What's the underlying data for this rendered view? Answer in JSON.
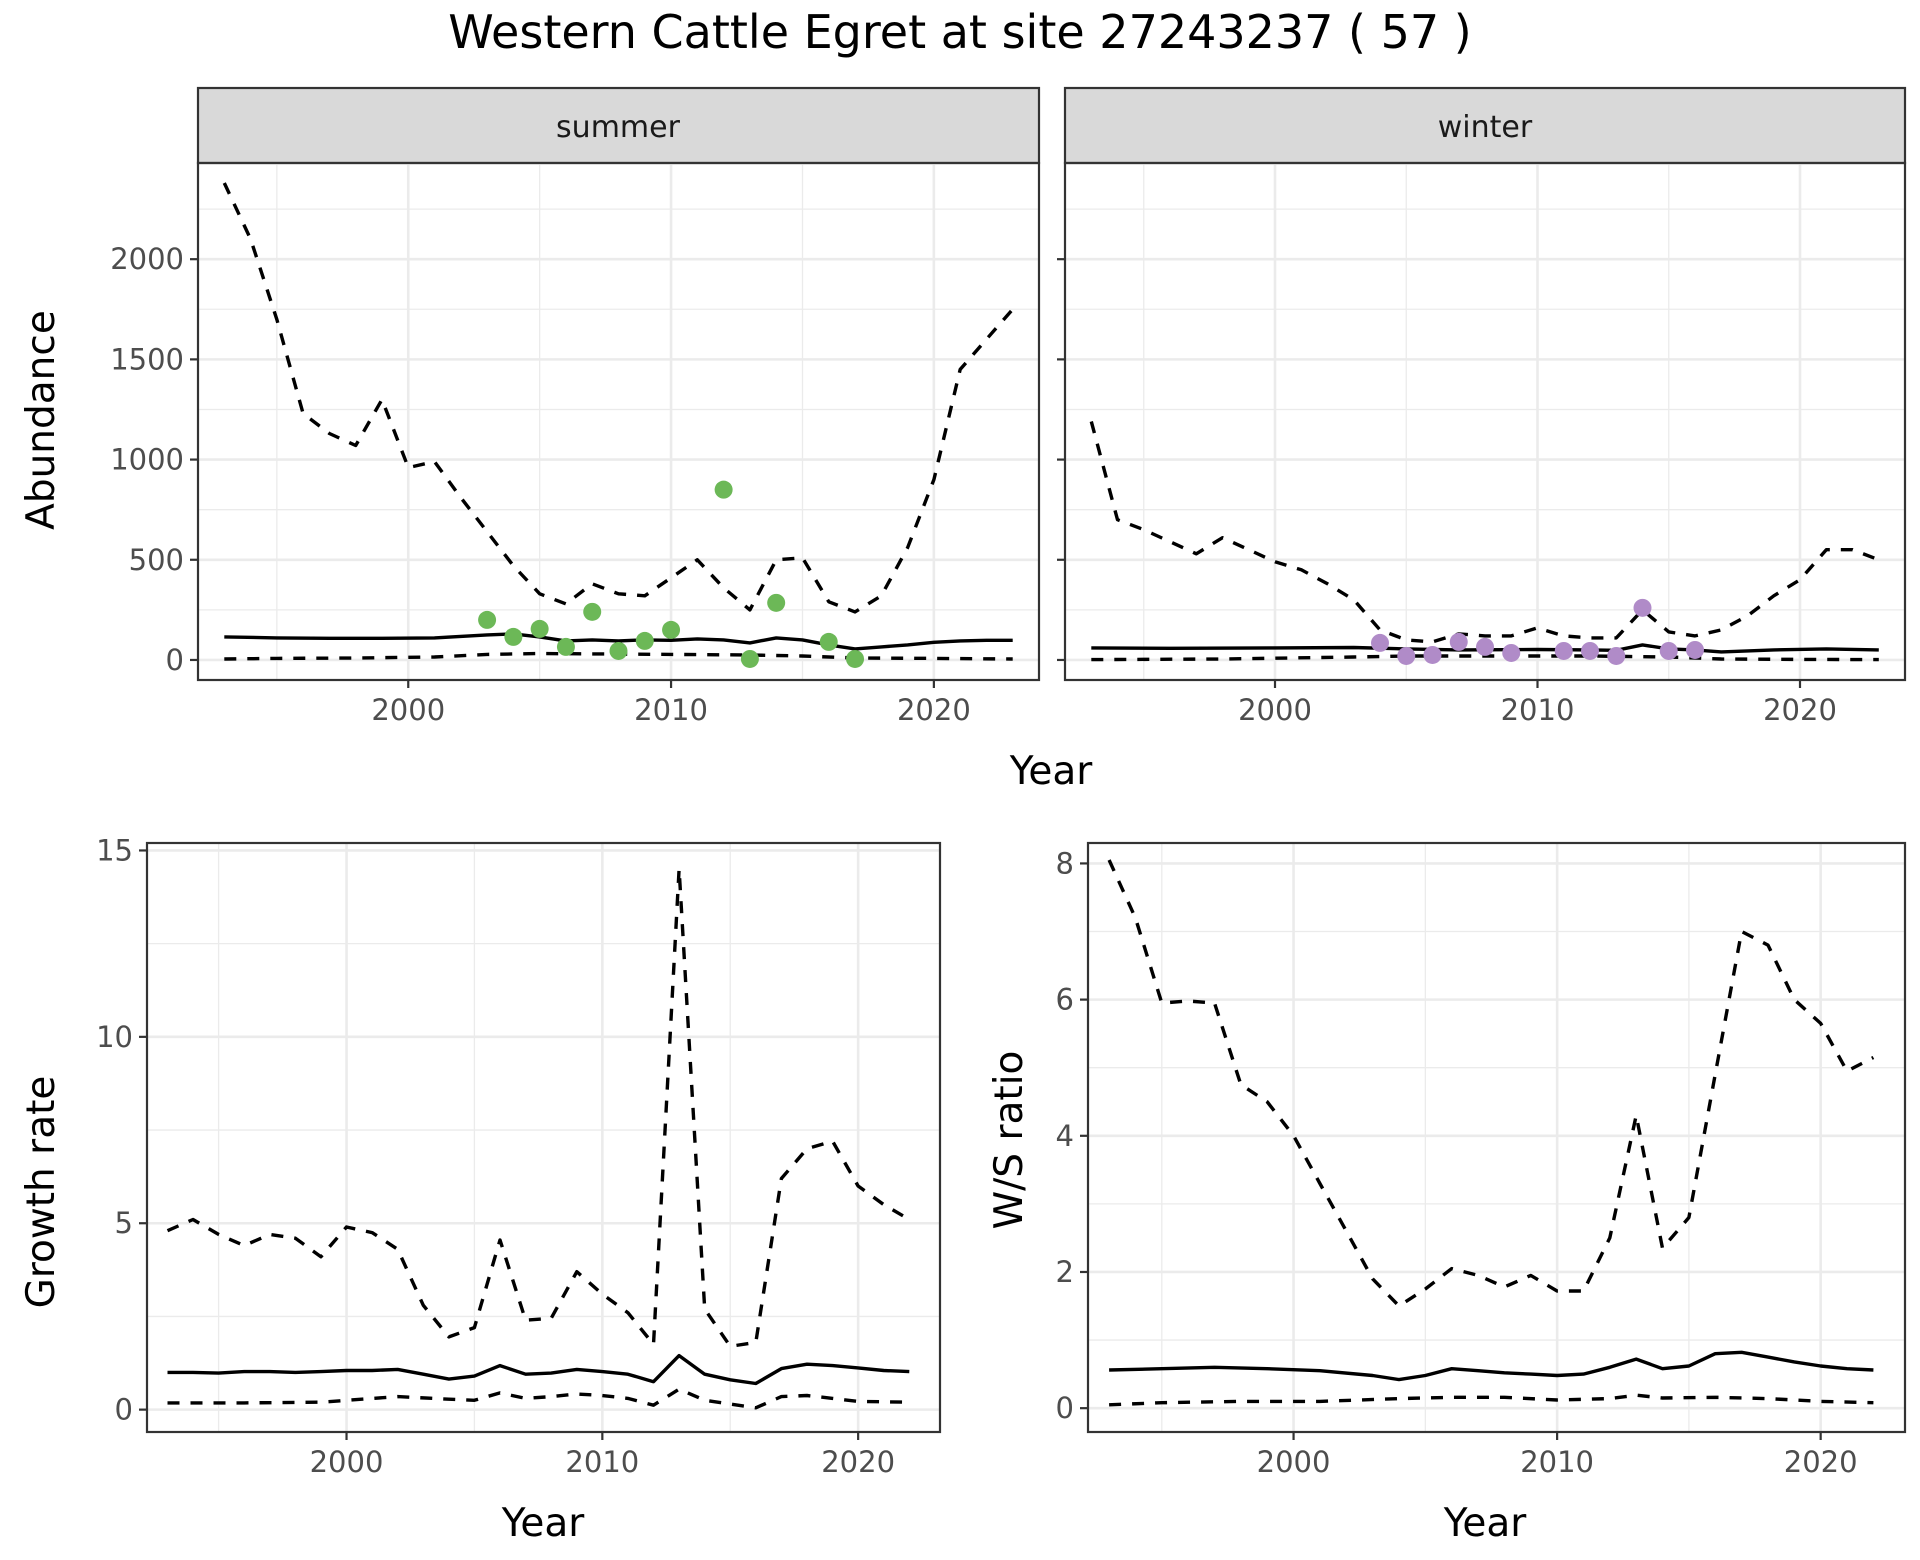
{
  "title": "Western Cattle Egret at site 27243237 ( 57 )",
  "colors": {
    "summer_points": "#6cb857",
    "winter_points": "#b08bc8",
    "lines": "#000000",
    "strip": "#d9d9d9"
  },
  "chart_data": [
    {
      "type": "line",
      "id": "abundance-summer",
      "facet": "summer",
      "xlabel": "Year",
      "ylabel": "Abundance",
      "xlim": [
        1992,
        2024
      ],
      "ylim": [
        -100,
        2480
      ],
      "xticks": [
        2000,
        2010,
        2020
      ],
      "yticks": [
        0,
        500,
        1000,
        1500,
        2000
      ],
      "grid": true,
      "series": [
        {
          "style": "solid",
          "x": [
            1993,
            1995,
            1997,
            1999,
            2001,
            2003,
            2004,
            2005,
            2006,
            2007,
            2008,
            2009,
            2010,
            2011,
            2012,
            2013,
            2014,
            2015,
            2016,
            2017,
            2018,
            2019,
            2020,
            2021,
            2022,
            2023
          ],
          "y": [
            115,
            110,
            108,
            108,
            110,
            125,
            130,
            115,
            95,
            100,
            95,
            100,
            98,
            105,
            100,
            85,
            110,
            100,
            75,
            55,
            65,
            75,
            88,
            95,
            98,
            98
          ]
        },
        {
          "style": "dashed",
          "x": [
            1993,
            1994,
            1995,
            1996,
            1997,
            1998,
            1999,
            2000,
            2001,
            2002,
            2003,
            2004,
            2005,
            2006,
            2007,
            2008,
            2009,
            2010,
            2011,
            2012,
            2013,
            2014,
            2015,
            2016,
            2017,
            2018,
            2019,
            2020,
            2021,
            2022,
            2023
          ],
          "y": [
            2380,
            2100,
            1700,
            1230,
            1130,
            1070,
            1300,
            960,
            990,
            810,
            640,
            470,
            330,
            280,
            380,
            330,
            320,
            410,
            500,
            360,
            250,
            500,
            510,
            290,
            240,
            320,
            560,
            900,
            1450,
            1600,
            1750
          ]
        },
        {
          "style": "dashed",
          "x": [
            1993,
            1995,
            1998,
            2001,
            2003,
            2005,
            2007,
            2010,
            2013,
            2015,
            2017,
            2020,
            2023
          ],
          "y": [
            5,
            8,
            10,
            15,
            28,
            32,
            30,
            28,
            25,
            20,
            10,
            8,
            5
          ]
        }
      ],
      "points": {
        "x": [
          2003,
          2004,
          2005,
          2006,
          2007,
          2008,
          2009,
          2010,
          2012,
          2013,
          2014,
          2016,
          2017
        ],
        "y": [
          200,
          115,
          155,
          65,
          240,
          45,
          95,
          150,
          850,
          5,
          285,
          90,
          5
        ]
      }
    },
    {
      "type": "line",
      "id": "abundance-winter",
      "facet": "winter",
      "xlabel": "Year",
      "ylabel": "Abundance",
      "xlim": [
        1992,
        2024
      ],
      "ylim": [
        -100,
        2480
      ],
      "xticks": [
        2000,
        2010,
        2020
      ],
      "yticks": [
        0,
        500,
        1000,
        1500,
        2000
      ],
      "grid": true,
      "series": [
        {
          "style": "solid",
          "x": [
            1993,
            1996,
            2000,
            2003,
            2005,
            2007,
            2010,
            2012,
            2013,
            2014,
            2015,
            2016,
            2017,
            2019,
            2021,
            2023
          ],
          "y": [
            60,
            58,
            60,
            62,
            55,
            50,
            52,
            50,
            48,
            75,
            55,
            50,
            40,
            50,
            55,
            50
          ]
        },
        {
          "style": "dashed",
          "x": [
            1993,
            1994,
            1995,
            1996,
            1997,
            1998,
            1999,
            2000,
            2001,
            2002,
            2003,
            2004,
            2005,
            2006,
            2007,
            2008,
            2009,
            2010,
            2011,
            2012,
            2013,
            2014,
            2015,
            2016,
            2017,
            2018,
            2019,
            2020,
            2021,
            2022,
            2023
          ],
          "y": [
            1190,
            700,
            650,
            590,
            530,
            610,
            550,
            490,
            450,
            380,
            300,
            150,
            100,
            90,
            130,
            120,
            120,
            160,
            120,
            110,
            110,
            250,
            140,
            120,
            150,
            220,
            320,
            400,
            550,
            550,
            500
          ]
        },
        {
          "style": "dashed",
          "x": [
            1993,
            1998,
            2003,
            2005,
            2008,
            2012,
            2015,
            2017,
            2020,
            2023
          ],
          "y": [
            2,
            5,
            15,
            20,
            20,
            20,
            15,
            5,
            3,
            2
          ]
        }
      ],
      "points": {
        "x": [
          2004,
          2005,
          2006,
          2007,
          2008,
          2009,
          2011,
          2012,
          2013,
          2014,
          2015,
          2016
        ],
        "y": [
          85,
          20,
          25,
          90,
          65,
          35,
          45,
          45,
          20,
          260,
          45,
          50
        ]
      }
    },
    {
      "type": "line",
      "id": "growth-rate",
      "xlabel": "Year",
      "ylabel": "Growth rate",
      "xlim": [
        1992.2,
        2023.2
      ],
      "ylim": [
        -0.6,
        15.2
      ],
      "xticks": [
        2000,
        2010,
        2020
      ],
      "yticks": [
        0,
        5,
        10,
        15
      ],
      "grid": true,
      "series": [
        {
          "style": "solid",
          "x": [
            1993,
            1994,
            1995,
            1996,
            1997,
            1998,
            1999,
            2000,
            2001,
            2002,
            2003,
            2004,
            2005,
            2006,
            2007,
            2008,
            2009,
            2010,
            2011,
            2012,
            2013,
            2014,
            2015,
            2016,
            2017,
            2018,
            2019,
            2020,
            2021,
            2022
          ],
          "y": [
            1.0,
            1.0,
            0.98,
            1.02,
            1.02,
            1.0,
            1.02,
            1.05,
            1.05,
            1.08,
            0.95,
            0.82,
            0.9,
            1.18,
            0.95,
            0.98,
            1.08,
            1.02,
            0.95,
            0.75,
            1.45,
            0.95,
            0.8,
            0.7,
            1.1,
            1.22,
            1.18,
            1.12,
            1.05,
            1.02
          ]
        },
        {
          "style": "dashed",
          "x": [
            1993,
            1994,
            1995,
            1996,
            1997,
            1998,
            1999,
            2000,
            2001,
            2002,
            2003,
            2004,
            2005,
            2006,
            2007,
            2008,
            2009,
            2010,
            2011,
            2012,
            2013,
            2014,
            2015,
            2016,
            2017,
            2018,
            2019,
            2020,
            2021,
            2022
          ],
          "y": [
            4.8,
            5.1,
            4.7,
            4.4,
            4.7,
            4.6,
            4.1,
            4.9,
            4.75,
            4.3,
            2.8,
            1.95,
            2.2,
            4.55,
            2.4,
            2.45,
            3.7,
            3.1,
            2.6,
            1.75,
            14.5,
            2.7,
            1.7,
            1.8,
            6.2,
            7.0,
            7.2,
            6.0,
            5.5,
            5.1
          ]
        },
        {
          "style": "dashed",
          "x": [
            1993,
            1996,
            1999,
            2002,
            2004,
            2005,
            2006,
            2007,
            2008,
            2009,
            2010,
            2011,
            2012,
            2013,
            2014,
            2015,
            2016,
            2017,
            2018,
            2019,
            2020,
            2022
          ],
          "y": [
            0.18,
            0.18,
            0.2,
            0.35,
            0.28,
            0.25,
            0.45,
            0.3,
            0.35,
            0.42,
            0.38,
            0.3,
            0.12,
            0.55,
            0.25,
            0.15,
            0.05,
            0.35,
            0.38,
            0.3,
            0.22,
            0.2
          ]
        }
      ]
    },
    {
      "type": "line",
      "id": "ws-ratio",
      "xlabel": "Year",
      "ylabel": "W/S ratio",
      "xlim": [
        1992.2,
        2023.2
      ],
      "ylim": [
        -0.35,
        8.3
      ],
      "xticks": [
        2000,
        2010,
        2020
      ],
      "yticks": [
        0,
        2,
        4,
        6,
        8
      ],
      "grid": true,
      "series": [
        {
          "style": "solid",
          "x": [
            1993,
            1995,
            1997,
            1999,
            2001,
            2003,
            2004,
            2005,
            2006,
            2007,
            2008,
            2009,
            2010,
            2011,
            2012,
            2013,
            2014,
            2015,
            2016,
            2017,
            2018,
            2019,
            2020,
            2021,
            2022
          ],
          "y": [
            0.56,
            0.58,
            0.6,
            0.58,
            0.55,
            0.48,
            0.42,
            0.48,
            0.58,
            0.55,
            0.52,
            0.5,
            0.48,
            0.5,
            0.6,
            0.72,
            0.58,
            0.62,
            0.8,
            0.82,
            0.75,
            0.68,
            0.62,
            0.58,
            0.56
          ]
        },
        {
          "style": "dashed",
          "x": [
            1993,
            1994,
            1995,
            1996,
            1997,
            1998,
            1999,
            2000,
            2001,
            2002,
            2003,
            2004,
            2005,
            2006,
            2007,
            2008,
            2009,
            2010,
            2011,
            2012,
            2013,
            2014,
            2015,
            2016,
            2017,
            2018,
            2019,
            2020,
            2021,
            2022
          ],
          "y": [
            8.05,
            7.2,
            5.95,
            5.98,
            5.95,
            4.75,
            4.5,
            4.0,
            3.3,
            2.6,
            1.9,
            1.5,
            1.75,
            2.05,
            1.95,
            1.78,
            1.95,
            1.72,
            1.72,
            2.5,
            4.3,
            2.35,
            2.8,
            4.9,
            7.0,
            6.8,
            6.0,
            5.65,
            4.95,
            5.15
          ]
        },
        {
          "style": "dashed",
          "x": [
            1993,
            1995,
            1998,
            2001,
            2004,
            2006,
            2008,
            2010,
            2012,
            2013,
            2014,
            2016,
            2018,
            2020,
            2022
          ],
          "y": [
            0.05,
            0.08,
            0.1,
            0.1,
            0.14,
            0.16,
            0.16,
            0.12,
            0.14,
            0.19,
            0.15,
            0.16,
            0.14,
            0.1,
            0.08
          ]
        }
      ]
    }
  ]
}
